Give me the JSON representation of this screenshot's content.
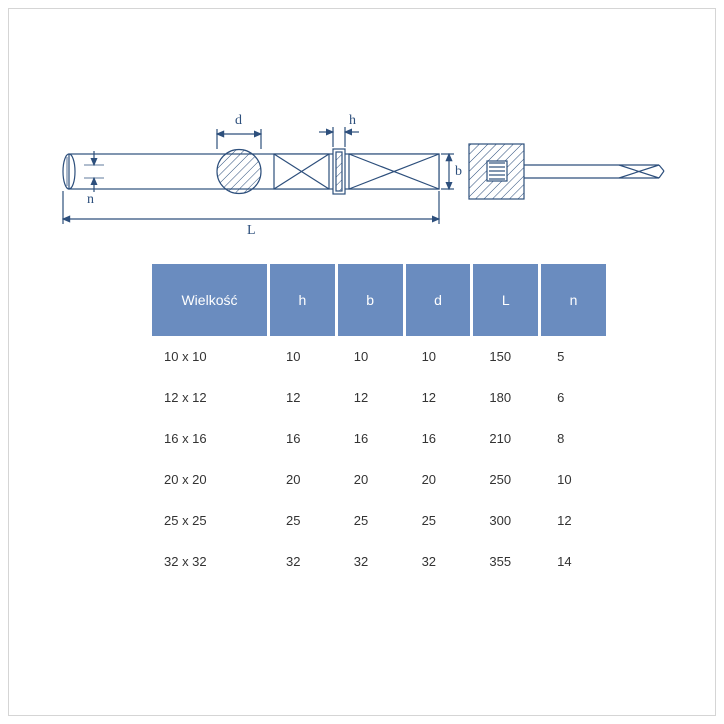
{
  "diagram": {
    "labels": {
      "d": "d",
      "h": "h",
      "b": "b",
      "n": "n",
      "L": "L"
    },
    "stroke_color": "#2d4f7c",
    "hatch_color": "#2d4f7c",
    "stroke_width": 1.2
  },
  "table": {
    "header_bg": "#6a8cbf",
    "header_fg": "#ffffff",
    "columns": [
      "Wielkość",
      "h",
      "b",
      "d",
      "L",
      "n"
    ],
    "rows": [
      [
        "10 x 10",
        "10",
        "10",
        "10",
        "150",
        "5"
      ],
      [
        "12 x 12",
        "12",
        "12",
        "12",
        "180",
        "6"
      ],
      [
        "16 x 16",
        "16",
        "16",
        "16",
        "210",
        "8"
      ],
      [
        "20 x 20",
        "20",
        "20",
        "20",
        "250",
        "10"
      ],
      [
        "25 x 25",
        "25",
        "25",
        "25",
        "300",
        "12"
      ],
      [
        "32 x 32",
        "32",
        "32",
        "32",
        "355",
        "14"
      ]
    ],
    "cell_fontsize": 13,
    "header_fontsize": 14
  },
  "background_color": "#ffffff"
}
